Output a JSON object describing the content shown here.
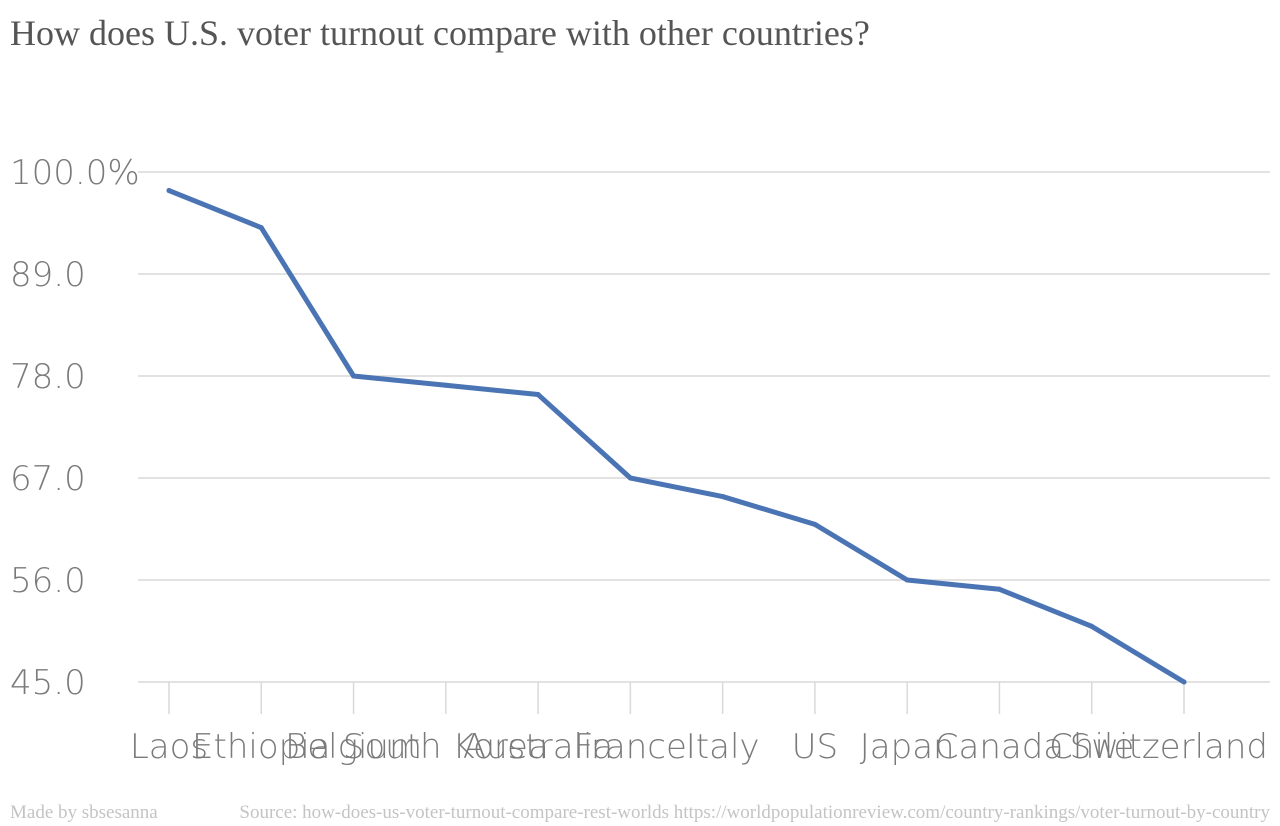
{
  "chart_data": {
    "type": "line",
    "title": "How does U.S. voter turnout compare with other countries?",
    "xlabel": "",
    "ylabel": "",
    "categories": [
      "Laos",
      "Ethiopia",
      "Belgium",
      "South Korea",
      "Australia",
      "France",
      "Italy",
      "US",
      "Japan",
      "Canada",
      "Chile",
      "Switzerland"
    ],
    "series": [
      {
        "values": [
          98.0,
          94.0,
          78.0,
          77.0,
          76.0,
          67.0,
          65.0,
          62.0,
          56.0,
          55.0,
          51.0,
          45.0
        ]
      }
    ],
    "y_ticks": [
      "100.0%",
      "89.0",
      "78.0",
      "67.0",
      "56.0",
      "45.0"
    ],
    "y_tick_values": [
      100,
      89,
      78,
      67,
      56,
      45
    ],
    "ylim": [
      45,
      100
    ],
    "grid": true,
    "line_color": "#4a74b4"
  },
  "footer": {
    "made_by": "Made by sbsesanna",
    "source": "Source: how-does-us-voter-turnout-compare-rest-worlds https://worldpopulationreview.com/country-rankings/voter-turnout-by-country"
  }
}
